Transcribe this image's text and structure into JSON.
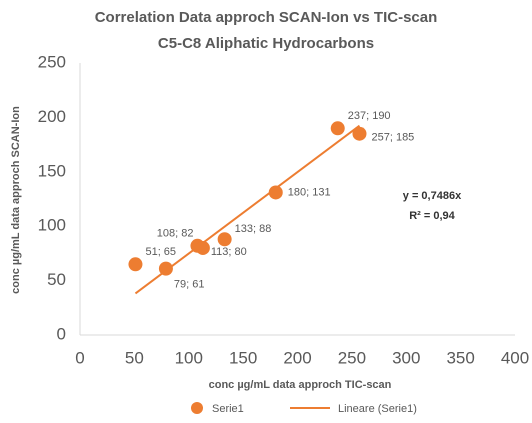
{
  "chart_data": {
    "type": "scatter",
    "title": "Correlation Data approch SCAN-Ion vs TIC-scan",
    "subtitle": "C5-C8 Aliphatic Hydrocarbons",
    "x_label": "conc µg/mL data approch TIC-scan",
    "y_label": "conc µg/mL data approch SCAN-Ion",
    "series": [
      {
        "name": "Serie1",
        "color": "#ed7d31",
        "x": [
          51,
          79,
          108,
          113,
          133,
          180,
          237,
          257
        ],
        "values": [
          65,
          61,
          82,
          80,
          88,
          131,
          190,
          185
        ],
        "value_labels": [
          "51; 65",
          "79; 61",
          "108; 82",
          "113; 80",
          "133; 88",
          "180; 131",
          "237; 190",
          "257; 185"
        ]
      },
      {
        "name": "Lineare (Serie1)",
        "color": "#ed7d31",
        "x": [
          51,
          257
        ],
        "values": [
          38.2,
          192.4
        ]
      }
    ],
    "annotations": [
      "y = 0,7486x",
      "R² = 0,94"
    ],
    "xlim": [
      0,
      400
    ],
    "xticks": [
      0,
      50,
      100,
      150,
      200,
      250,
      300,
      350,
      400
    ],
    "ylim": [
      0,
      250
    ],
    "yticks": [
      0,
      50,
      100,
      150,
      200,
      250
    ],
    "grid": false,
    "legend": "bottom"
  }
}
